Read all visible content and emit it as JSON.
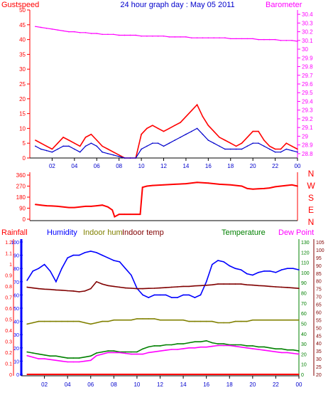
{
  "colors": {
    "gust": "#ff0000",
    "wind": "#0000cc",
    "baro": "#ff00ff",
    "dir": "#ff0000",
    "rain": "#ff0000",
    "hum": "#0000ff",
    "inhum": "#808000",
    "intemp": "#800000",
    "temp": "#008000",
    "dew": "#ff00ff",
    "yellow": "#ffff00"
  },
  "chart_data": [
    {
      "type": "line",
      "title": "24 hour graph day : May 05 2011",
      "left_axis_label": "Gustspeed",
      "right_axis_label": "Barometer",
      "x_ticks": [
        "02",
        "04",
        "06",
        "08",
        "10",
        "12",
        "14",
        "16",
        "18",
        "20",
        "22",
        "00"
      ],
      "left_ticks": [
        "0",
        "5",
        "10",
        "15",
        "20",
        "25",
        "30",
        "35",
        "40",
        "45",
        "50"
      ],
      "right_ticks": [
        "28.8",
        "28.9",
        "29",
        "29.1",
        "29.2",
        "29.3",
        "29.4",
        "29.5",
        "29.6",
        "29.7",
        "29.8",
        "29.9",
        "30",
        "30.1",
        "30.2",
        "30.3",
        "30.4"
      ],
      "ylim_left": [
        0,
        50
      ],
      "ylim_right": [
        28.75,
        30.45
      ],
      "x_hours": [
        0.5,
        1,
        1.5,
        2,
        2.5,
        3,
        3.5,
        4,
        4.5,
        5,
        5.5,
        6,
        6.5,
        7,
        7.5,
        8,
        8.5,
        9,
        9.5,
        10,
        10.5,
        11,
        11.5,
        12,
        12.5,
        13,
        13.5,
        14,
        14.5,
        15,
        15.5,
        16,
        16.5,
        17,
        17.5,
        18,
        18.5,
        19,
        19.5,
        20,
        20.5,
        21,
        21.5,
        22,
        22.5,
        23,
        23.5,
        24
      ],
      "series": [
        {
          "key": "gust",
          "values": [
            6,
            5,
            4,
            3,
            5,
            7,
            6,
            5,
            4,
            7,
            8,
            6,
            4,
            3,
            2,
            1,
            0,
            0,
            0,
            8,
            10,
            11,
            10,
            9,
            10,
            11,
            12,
            14,
            16,
            18,
            14,
            11,
            9,
            7,
            6,
            5,
            4,
            5,
            7,
            9,
            9,
            6,
            4,
            3,
            3,
            5,
            4,
            3
          ]
        },
        {
          "key": "wind",
          "values": [
            4,
            3,
            2.5,
            2,
            3,
            4,
            4,
            3,
            2,
            4,
            5,
            4,
            2,
            1.5,
            1,
            0.5,
            0,
            0,
            0,
            3,
            4,
            5,
            5,
            4,
            5,
            6,
            7,
            8,
            9,
            10,
            8,
            6,
            5,
            4,
            3,
            3,
            3,
            3,
            4,
            5,
            5,
            4,
            3,
            2,
            2,
            3,
            2.5,
            2
          ]
        },
        {
          "key": "baro",
          "values": [
            30.26,
            30.25,
            30.24,
            30.23,
            30.22,
            30.21,
            30.2,
            30.2,
            30.19,
            30.19,
            30.18,
            30.18,
            30.17,
            30.17,
            30.17,
            30.16,
            30.16,
            30.16,
            30.16,
            30.15,
            30.15,
            30.15,
            30.15,
            30.15,
            30.14,
            30.14,
            30.14,
            30.14,
            30.13,
            30.13,
            30.13,
            30.13,
            30.13,
            30.13,
            30.13,
            30.12,
            30.12,
            30.12,
            30.12,
            30.12,
            30.11,
            30.11,
            30.11,
            30.11,
            30.1,
            30.1,
            30.1,
            30.09
          ]
        }
      ]
    },
    {
      "type": "line",
      "y_ticks": [
        "0",
        "90",
        "180",
        "270",
        "360"
      ],
      "right_labels": [
        "N",
        "W",
        "S",
        "E",
        "N"
      ],
      "ylim": [
        0,
        360
      ],
      "x_hours": [
        0.5,
        1,
        1.5,
        2,
        2.5,
        3,
        3.5,
        4,
        4.5,
        5,
        5.5,
        6,
        6.5,
        7,
        7.4,
        7.6,
        8,
        8.5,
        9,
        9.5,
        9.9,
        10.1,
        10.5,
        11,
        12,
        13,
        14,
        15,
        16,
        17,
        18,
        19,
        19.5,
        20,
        20.5,
        21,
        21.5,
        22,
        22.5,
        23,
        23.5,
        24
      ],
      "series": [
        {
          "key": "dir",
          "values": [
            120,
            115,
            110,
            108,
            105,
            100,
            95,
            95,
            100,
            105,
            105,
            110,
            115,
            100,
            75,
            20,
            40,
            40,
            40,
            40,
            40,
            260,
            270,
            275,
            280,
            285,
            290,
            300,
            295,
            285,
            280,
            270,
            250,
            245,
            248,
            250,
            255,
            265,
            270,
            275,
            280,
            270
          ]
        }
      ]
    },
    {
      "type": "line",
      "legend": [
        "Rainfall",
        "Humidity",
        "Indoor hum",
        "Indoor temp",
        "Temperature",
        "Dew Point"
      ],
      "left1_ticks": [
        "0",
        "0.1",
        "0.2",
        "0.3",
        "0.4",
        "0.5",
        "0.6",
        "0.7",
        "0.8",
        "0.9",
        "1",
        "1.1",
        "1.2"
      ],
      "left2_ticks": [
        "0",
        "10",
        "20",
        "30",
        "40",
        "50",
        "60",
        "70",
        "80",
        "90",
        "100"
      ],
      "right1_ticks": [
        "0",
        "10",
        "20",
        "30",
        "40",
        "50",
        "60",
        "70",
        "80",
        "90",
        "100",
        "110",
        "120",
        "130"
      ],
      "right2_ticks": [
        "20",
        "25",
        "30",
        "35",
        "40",
        "45",
        "50",
        "55",
        "60",
        "65",
        "70",
        "75",
        "80",
        "85",
        "90",
        "95",
        "100",
        "105"
      ],
      "x_ticks": [
        "02",
        "04",
        "06",
        "08",
        "10",
        "12",
        "14",
        "16",
        "18",
        "20",
        "22",
        "00"
      ],
      "x_hours": [
        0.5,
        1,
        1.5,
        2,
        2.5,
        3,
        3.5,
        4,
        4.5,
        5,
        5.5,
        6,
        6.5,
        7,
        7.5,
        8,
        8.5,
        9,
        9.5,
        10,
        10.5,
        11,
        11.5,
        12,
        12.5,
        13,
        13.5,
        14,
        14.5,
        15,
        15.5,
        16,
        16.5,
        17,
        17.5,
        18,
        18.5,
        19,
        19.5,
        20,
        20.5,
        21,
        21.5,
        22,
        22.5,
        23,
        23.5,
        24
      ],
      "series": [
        {
          "key": "rain",
          "axis": "left1",
          "values": [
            0,
            0,
            0,
            0,
            0,
            0,
            0,
            0,
            0,
            0,
            0,
            0,
            0,
            0,
            0,
            0,
            0,
            0,
            0,
            0,
            0,
            0,
            0,
            0,
            0,
            0,
            0,
            0,
            0,
            0,
            0,
            0,
            0,
            0,
            0,
            0,
            0,
            0,
            0,
            0,
            0,
            0,
            0,
            0,
            0,
            0,
            0,
            0
          ]
        },
        {
          "key": "hum",
          "axis": "left2",
          "values": [
            71,
            78,
            80,
            83,
            78,
            70,
            80,
            88,
            90,
            90,
            92,
            93,
            92,
            90,
            88,
            86,
            85,
            80,
            75,
            65,
            60,
            58,
            60,
            60,
            60,
            58,
            58,
            60,
            60,
            58,
            60,
            70,
            83,
            86,
            85,
            82,
            80,
            79,
            76,
            75,
            77,
            78,
            78,
            77,
            79,
            80,
            80,
            79
          ]
        },
        {
          "key": "inhum",
          "axis": "left2",
          "values": [
            38,
            39,
            40,
            40,
            40,
            40,
            40,
            40,
            40,
            40,
            39,
            38,
            39,
            40,
            40,
            41,
            41,
            41,
            41,
            42,
            42,
            42,
            42,
            41,
            41,
            41,
            41,
            41,
            40,
            40,
            40,
            40,
            40,
            39,
            39,
            39,
            40,
            40,
            40,
            41,
            41,
            41,
            41,
            41,
            41,
            41,
            41,
            41
          ]
        },
        {
          "key": "intemp",
          "axis": "right2",
          "values": [
            76,
            75.5,
            75,
            74.7,
            74.5,
            74.2,
            74,
            73.7,
            73.5,
            73,
            73.5,
            75,
            79.5,
            78,
            77,
            76.5,
            76,
            75.5,
            75.3,
            75,
            75,
            75.2,
            75.3,
            75.5,
            75.7,
            76,
            76.2,
            76.5,
            76.5,
            76.8,
            77,
            77.2,
            77.5,
            78,
            78,
            78,
            78,
            78,
            77.5,
            77.3,
            77,
            76.8,
            76.5,
            76.2,
            76,
            75.8,
            75.5,
            75.2
          ]
        },
        {
          "key": "temp",
          "axis": "right1",
          "values": [
            22,
            21,
            20,
            19,
            18,
            18,
            17,
            16,
            16,
            16,
            17,
            18,
            21,
            22,
            23,
            23,
            22,
            22,
            22,
            22,
            25,
            27,
            28,
            28,
            29,
            29,
            30,
            30,
            31,
            32,
            32,
            33,
            31,
            30,
            30,
            29,
            29,
            29,
            28,
            28,
            27,
            27,
            26,
            25,
            25,
            24,
            24,
            23
          ]
        },
        {
          "key": "dew",
          "axis": "right2",
          "values": [
            32,
            31,
            30,
            30,
            29.5,
            29,
            28.5,
            28,
            28,
            28,
            28.5,
            29,
            32,
            33,
            34,
            34,
            34,
            33.5,
            33,
            33,
            33,
            34,
            34.5,
            35,
            35.5,
            36,
            36,
            36.5,
            37,
            37,
            37.5,
            37.5,
            38,
            38.5,
            38.5,
            38.5,
            38,
            37.5,
            37,
            36.5,
            36,
            35.5,
            35,
            34.5,
            34,
            34,
            33.5,
            33
          ]
        }
      ]
    }
  ]
}
